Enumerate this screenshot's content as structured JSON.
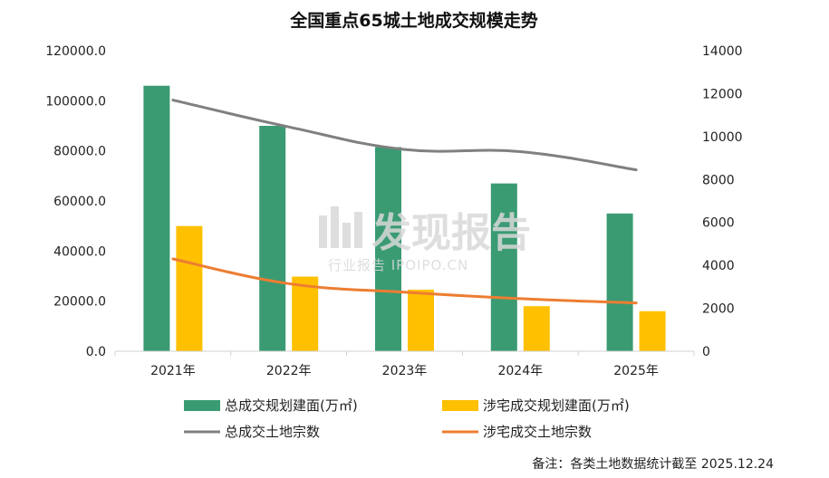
{
  "chart_data": {
    "type": "bar",
    "title": "全国重点65城土地成交规模走势",
    "categories": [
      "2021年",
      "2022年",
      "2023年",
      "2024年",
      "2025年"
    ],
    "left_axis": {
      "ylim": [
        0,
        120000
      ],
      "ticks": [
        "0.0",
        "20000.0",
        "40000.0",
        "60000.0",
        "80000.0",
        "100000.0",
        "120000.0"
      ]
    },
    "right_axis": {
      "ylim": [
        0,
        14000
      ],
      "ticks": [
        "0",
        "2000",
        "4000",
        "6000",
        "8000",
        "10000",
        "12000",
        "14000"
      ]
    },
    "series": [
      {
        "name": "总成交规划建面(万㎡)",
        "type": "bar",
        "axis": "left",
        "color": "#3a9b73",
        "values": [
          106000,
          90000,
          81500,
          67000,
          55000
        ]
      },
      {
        "name": "涉宅成交规划建面(万㎡)",
        "type": "bar",
        "axis": "left",
        "color": "#ffc000",
        "values": [
          50000,
          29800,
          24600,
          18000,
          16000
        ]
      },
      {
        "name": "总成交土地宗数",
        "type": "line",
        "axis": "right",
        "color": "#808080",
        "values": [
          11700,
          10450,
          9400,
          9300,
          8450
        ]
      },
      {
        "name": "涉宅成交土地宗数",
        "type": "line",
        "axis": "right",
        "color": "#ed7d31",
        "values": [
          4300,
          3150,
          2750,
          2450,
          2250
        ]
      }
    ],
    "legend_position": "bottom",
    "grid": false
  },
  "watermark": {
    "brand": "发现报告",
    "subtitle": "行业报告 IPOIPO.CN"
  },
  "note": "备注：各类土地数据统计截至 2025.12.24"
}
